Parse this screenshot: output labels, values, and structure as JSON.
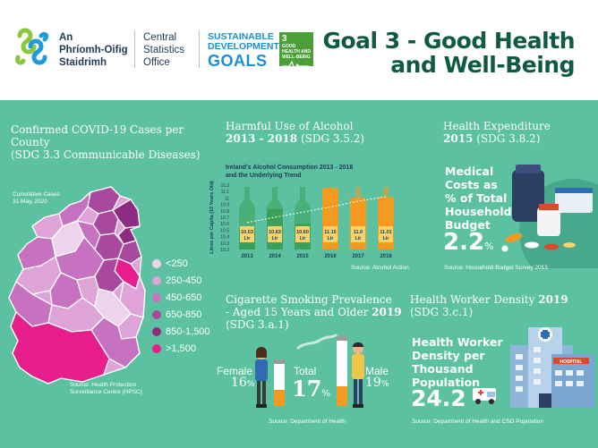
{
  "header": {
    "cso_irish": [
      "An",
      "Phríomh-Oifig",
      "Staidrimh"
    ],
    "cso_english": [
      "Central",
      "Statistics",
      "Office"
    ],
    "sdg_line1": "SUSTAINABLE",
    "sdg_line2": "DEVELOPMENT",
    "sdg_goals": "GOALS",
    "goal_badge_num": "3",
    "goal_badge_text": "GOOD HEALTH AND WELL-BEING",
    "title_line1": "Goal 3 - Good Health",
    "title_line2": "and Well-Being"
  },
  "covid": {
    "title_line1": "Confirmed COVID-19 Cases per",
    "title_line2": "County",
    "subtitle": "(SDG 3.3 Communicable Diseases)",
    "note_line1": "Cumulative Cases",
    "note_line2": "31 May, 2020",
    "source_line1": "Source: Health Protection",
    "source_line2": "Surveillance Centre (HPSC)",
    "legend": [
      {
        "label": "<250",
        "color": "#eed3ec"
      },
      {
        "label": "250-450",
        "color": "#dea4d8"
      },
      {
        "label": "450-650",
        "color": "#c672c0"
      },
      {
        "label": "650-850",
        "color": "#a8489e"
      },
      {
        "label": "850-1,500",
        "color": "#8e2b83"
      },
      {
        "label": ">1,500",
        "color": "#e71e8b"
      }
    ]
  },
  "alcohol": {
    "title_line1": "Harmful Use of Alcohol",
    "title_line2": "2013 - 2018",
    "title_sdg": "(SDG 3.5.2)",
    "source": "Source: Alcohol Action"
  },
  "chart_data": {
    "type": "bar",
    "title": "Ireland's Alcohol Consumption 2013 - 2018 and the Underlying Trend",
    "ylabel": "Litres per Capita (15 Years Old)",
    "ylim": [
      10.2,
      11.2
    ],
    "yticks": [
      "10.2",
      "10.3",
      "10.4",
      "10.5",
      "10.6",
      "10.7",
      "10.8",
      "10.9",
      "11",
      "11.1",
      "11.2"
    ],
    "categories": [
      "2013",
      "2014",
      "2015",
      "2016",
      "2017",
      "2018"
    ],
    "values": [
      10.53,
      10.83,
      10.6,
      11.15,
      11.0,
      11.01
    ],
    "value_labels": [
      "10.53",
      "10.83",
      "10.60",
      "11.15",
      "11.0",
      "11.01"
    ],
    "value_unit": "Ltr",
    "bottle_colors": [
      "#3da05a",
      "#3da05a",
      "#3da05a",
      "#f39a1f",
      "#f39a1f",
      "#f39a1f"
    ],
    "trend": [
      10.62,
      10.7,
      10.78,
      10.86,
      10.95,
      11.02
    ]
  },
  "health_exp": {
    "title_line1": "Health Expenditure",
    "title_line2": "2015",
    "title_sdg": "(SDG 3.8.2)",
    "label": [
      "Medical",
      "Costs as",
      "% of Total",
      "Household",
      "Budget"
    ],
    "value": "2.2",
    "unit": "%",
    "source": "Source: Household Budget Survey 2015"
  },
  "smoking": {
    "title_line1": "Cigarette Smoking Prevalence",
    "title_line2": "- Aged 15 Years and Older",
    "title_year": "2019",
    "title_sdg": "(SDG 3.a.1)",
    "female_label": "Female",
    "female_value": "16",
    "total_label": "Total",
    "total_value": "17",
    "male_label": "Male",
    "male_value": "19",
    "unit": "%",
    "source": "Source: Department of Health"
  },
  "workers": {
    "title_line1": "Health Worker Density",
    "title_year": "2019",
    "title_sdg": "(SDG 3.c.1)",
    "label": [
      "Health Worker",
      "Density per",
      "Thousand",
      "Population"
    ],
    "value": "24.2",
    "hospital_sign": "HOSPITAL",
    "source": "Source: Department of Health and CSO Population"
  }
}
